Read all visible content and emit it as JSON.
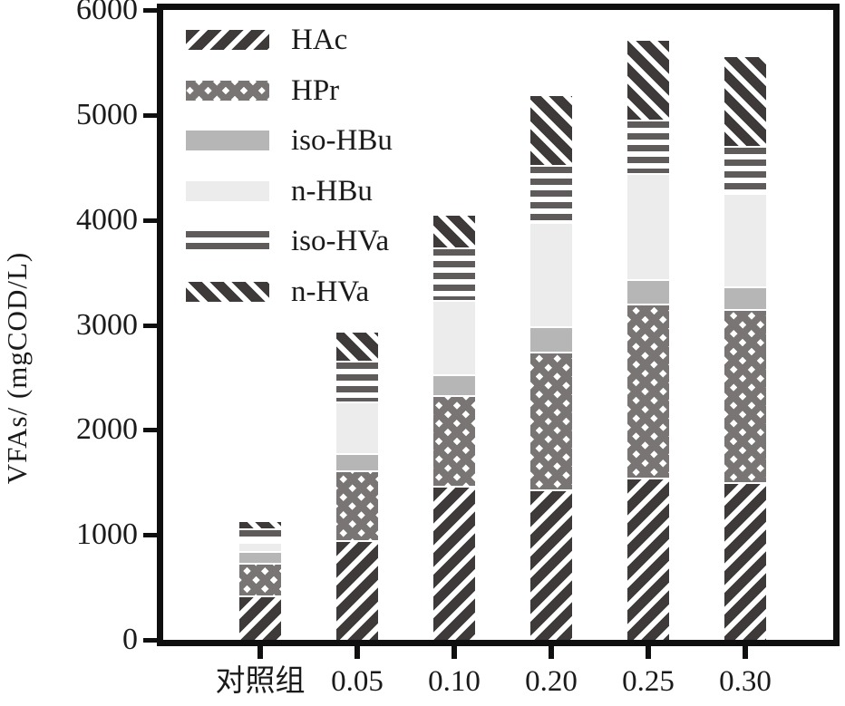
{
  "chart_data": {
    "type": "bar",
    "stacked": true,
    "title": "",
    "ylabel": "VFAs/ (mgCOD/L)",
    "xlabel": "",
    "categories": [
      "对照组",
      "0.05",
      "0.10",
      "0.20",
      "0.25",
      "0.30"
    ],
    "series": [
      {
        "name": "HAc",
        "pattern": "hac",
        "values": [
          420,
          950,
          1465,
          1430,
          1540,
          1500
        ]
      },
      {
        "name": "HPr",
        "pattern": "hpr",
        "values": [
          310,
          660,
          870,
          1320,
          1660,
          1650
        ]
      },
      {
        "name": "iso-HBu",
        "pattern": "isohbu",
        "values": [
          115,
          165,
          200,
          240,
          230,
          220
        ]
      },
      {
        "name": "n-HBu",
        "pattern": "nhbu",
        "values": [
          85,
          490,
          705,
          990,
          1010,
          890
        ]
      },
      {
        "name": "iso-HVa",
        "pattern": "isohva",
        "values": [
          130,
          390,
          500,
          550,
          510,
          450
        ]
      },
      {
        "name": "n-HVa",
        "pattern": "nhva",
        "values": [
          80,
          285,
          320,
          670,
          770,
          860
        ]
      }
    ],
    "ylim": [
      0,
      6000
    ],
    "yticks": [
      0,
      1000,
      2000,
      3000,
      4000,
      5000,
      6000
    ],
    "legend_position": "top-left",
    "grid": false,
    "colors": {
      "hatch_dark": "#3e3a3a",
      "hatch_medium": "#7a7575",
      "solid_gray": "#b6b6b6",
      "solid_light": "#ececec",
      "stripe_gray": "#5f5b5b",
      "axis": "#0f0f0f",
      "text": "#1a1a1a"
    }
  }
}
